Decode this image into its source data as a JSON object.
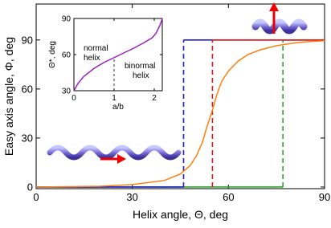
{
  "chart_data": {
    "type": "line",
    "xlabel": "Helix angle, Θ, deg",
    "ylabel": "Easy axis angle, Φ, deg",
    "xlim": [
      0,
      90
    ],
    "ylim": [
      -1,
      112
    ],
    "xticks": [
      0,
      30,
      60,
      90
    ],
    "yticks": [
      0,
      30,
      60,
      90
    ],
    "series": [
      {
        "color": "#2ca02c",
        "x": [
          0,
          77,
          77,
          90
        ],
        "values": [
          0,
          0,
          90,
          90
        ]
      },
      {
        "color": "#1f1fcc",
        "x": [
          0,
          46,
          46,
          90
        ],
        "values": [
          0,
          0,
          90,
          90
        ]
      },
      {
        "color": "#e31a1c",
        "x": [
          55,
          55,
          90
        ],
        "values": [
          0,
          90,
          90
        ]
      },
      {
        "color": "#ff7f0e",
        "x": [
          0,
          20,
          30,
          40,
          45,
          48,
          50,
          52,
          53,
          54,
          55,
          56,
          57,
          58,
          60,
          63,
          66,
          70,
          75,
          80,
          85,
          90
        ],
        "values": [
          0,
          0.5,
          1.5,
          4,
          8,
          13,
          19,
          28,
          35,
          41,
          47,
          54,
          60,
          65,
          71,
          77,
          81,
          84,
          86.5,
          88,
          89,
          89.5
        ]
      }
    ],
    "inset": {
      "type": "line",
      "xlabel": "a/b",
      "ylabel": "Θ*, deg",
      "xlim": [
        0,
        2.2
      ],
      "ylim": [
        30,
        90
      ],
      "xticks": [
        0,
        1,
        2
      ],
      "yticks": [
        30,
        60,
        90
      ],
      "marker_x": 1,
      "annotations": [
        [
          "normal",
          "helix"
        ],
        [
          "binormal",
          "helix"
        ]
      ],
      "series": [
        {
          "color": "#9b1fbf",
          "x": [
            0,
            0.1,
            0.25,
            0.5,
            0.75,
            1,
            1.25,
            1.5,
            1.75,
            1.95,
            2.05,
            2.15,
            2.2
          ],
          "values": [
            30,
            36,
            42,
            48.5,
            53.5,
            57.5,
            61.5,
            65.5,
            70,
            74,
            78,
            85,
            90
          ]
        }
      ]
    }
  }
}
